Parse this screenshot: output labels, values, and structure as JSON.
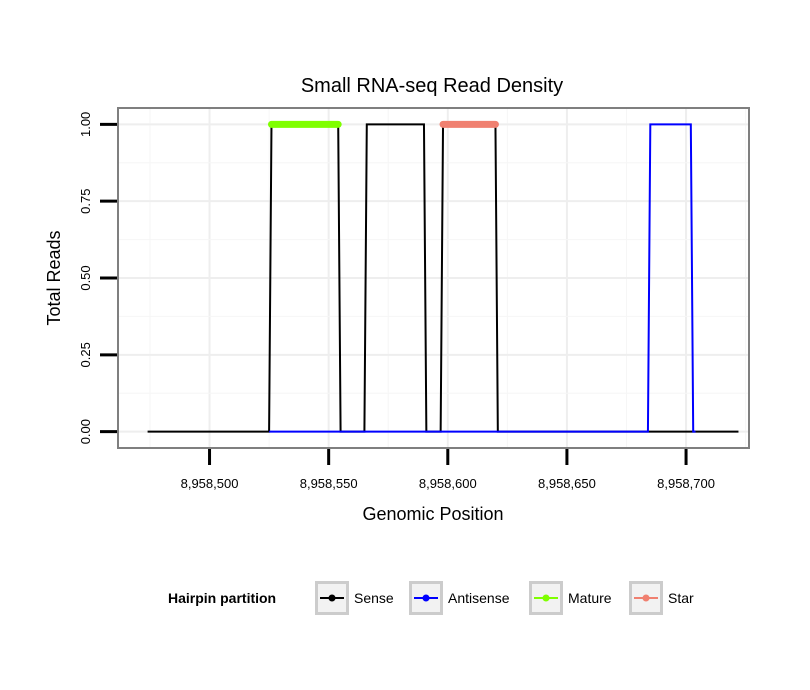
{
  "chart_data": {
    "type": "line",
    "title": "Small RNA-seq Read Density",
    "xlabel": "Genomic Position",
    "ylabel": "Total Reads",
    "xlim": [
      8958462,
      8958726
    ],
    "ylim": [
      -0.05,
      1.05
    ],
    "x_ticks": [
      8958500,
      8958550,
      8958600,
      8958650,
      8958700
    ],
    "x_tick_labels": [
      "8,958,500",
      "8,958,550",
      "8,958,600",
      "8,958,650",
      "8,958,700"
    ],
    "y_ticks": [
      0,
      0.25,
      0.5,
      0.75,
      1
    ],
    "y_tick_labels": [
      "0.00",
      "0.25",
      "0.50",
      "0.75",
      "1.00"
    ],
    "grid": true,
    "legend": {
      "title": "Hairpin partition",
      "position": "bottom",
      "entries": [
        "Sense",
        "Antisense",
        "Mature",
        "Star"
      ]
    },
    "series": [
      {
        "name": "Sense",
        "color": "#000000",
        "x": [
          8958474,
          8958525,
          8958526,
          8958554,
          8958555,
          8958565,
          8958566,
          8958590,
          8958591,
          8958597,
          8958598,
          8958620,
          8958621,
          8958722
        ],
        "y": [
          0,
          0,
          1,
          1,
          0,
          0,
          1,
          1,
          0,
          0,
          1,
          1,
          0,
          0
        ]
      },
      {
        "name": "Antisense",
        "color": "#0000ff",
        "x": [
          8958525,
          8958684,
          8958685,
          8958702,
          8958703,
          8958704
        ],
        "y": [
          0,
          0,
          1,
          1,
          0,
          0
        ]
      },
      {
        "name": "Mature",
        "color": "#7fff00",
        "x": [
          8958526,
          8958554
        ],
        "y": [
          1,
          1
        ]
      },
      {
        "name": "Star",
        "color": "#f08070",
        "x": [
          8958598,
          8958620
        ],
        "y": [
          1,
          1
        ]
      }
    ]
  }
}
